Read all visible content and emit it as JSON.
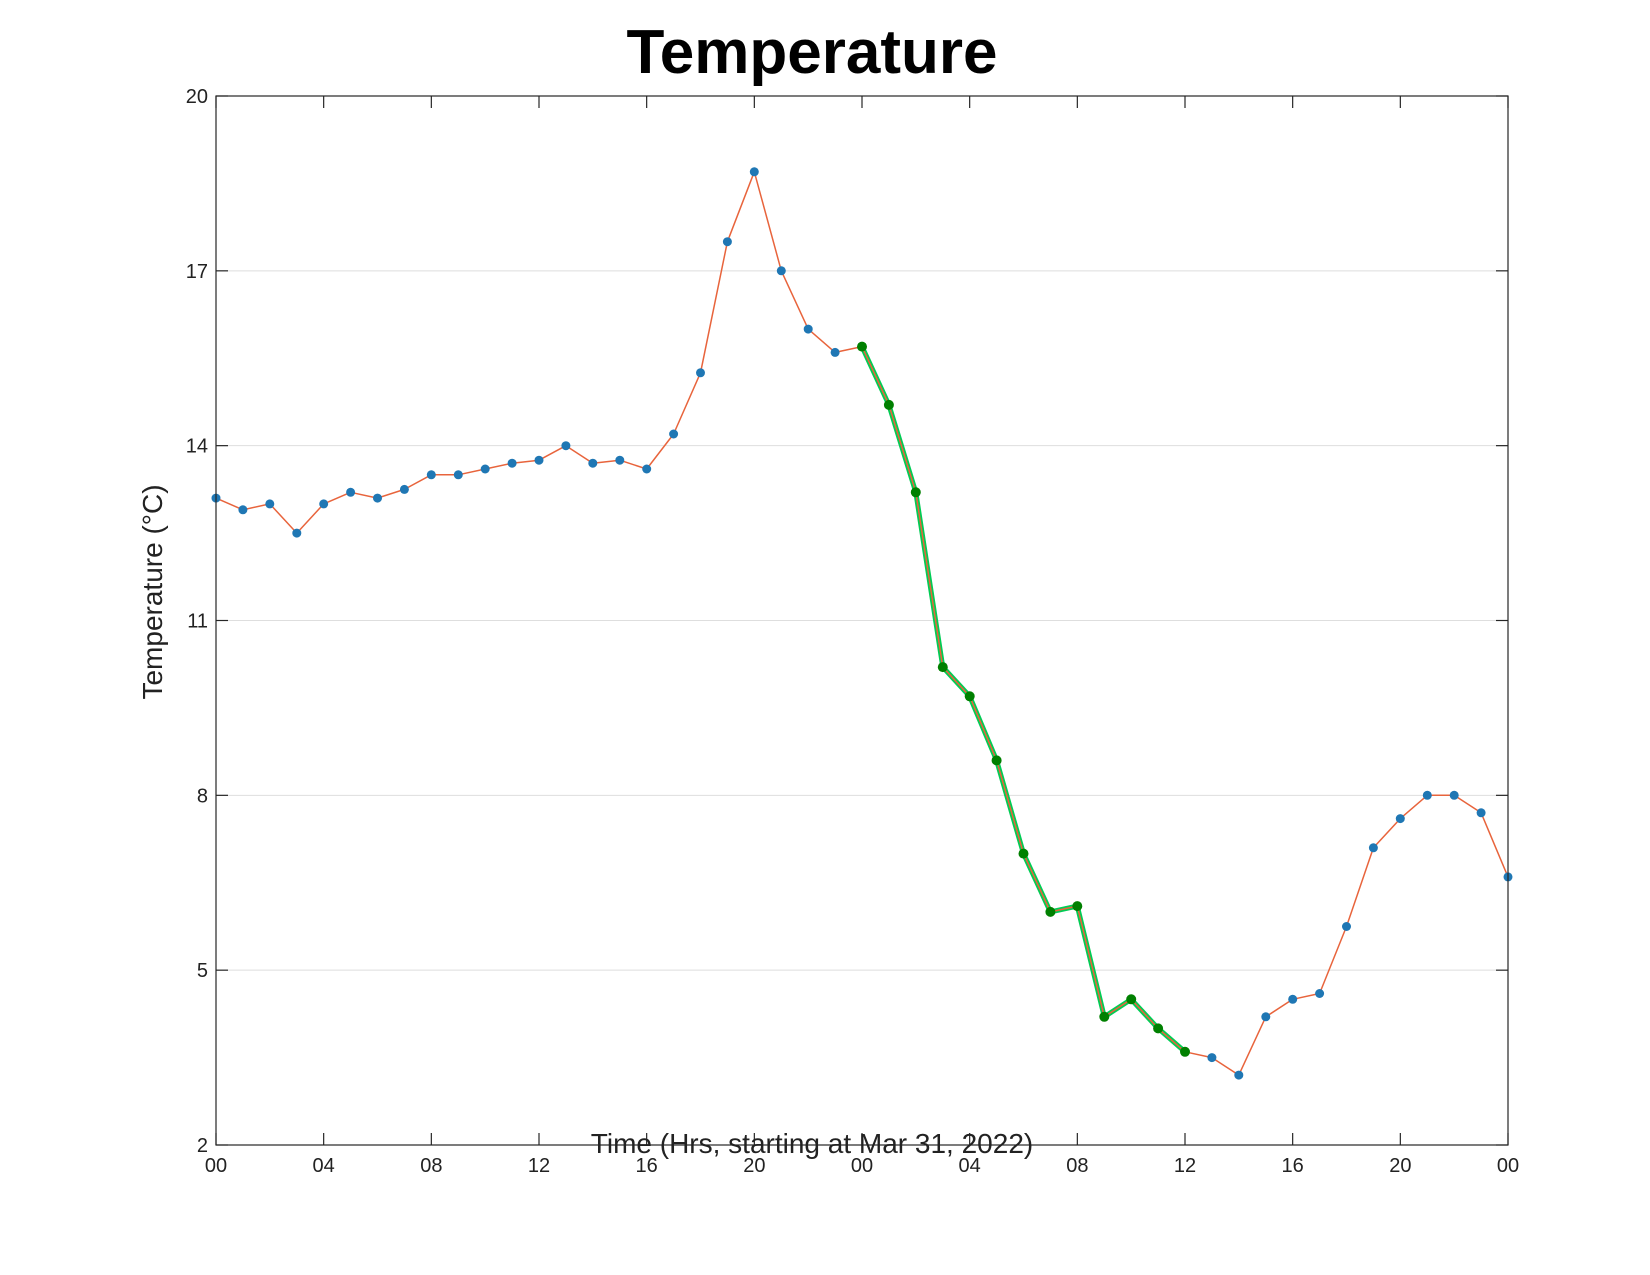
{
  "chart_data": {
    "type": "line",
    "title": "Temperature",
    "xlabel": "Time (Hrs, starting at Mar 31, 2022)",
    "ylabel": "Temperature (°C)",
    "ylim": [
      2,
      20
    ],
    "xlim": [
      "2022-03-31 00:00",
      "2022-04-02 00:00"
    ],
    "yticks": [
      2,
      5,
      8,
      11,
      14,
      17,
      20
    ],
    "xtick_labels": [
      "00",
      "04",
      "08",
      "12",
      "16",
      "20",
      "00",
      "04",
      "08",
      "12",
      "16",
      "20",
      "00"
    ],
    "grid": {
      "horizontal": true,
      "vertical": false
    },
    "colors": {
      "line": "#e8643c",
      "marker": "#1f77b4",
      "highlight_line": "#00cc55",
      "highlight_marker": "#008000"
    },
    "x": [
      "2022-03-31 00:00",
      "2022-03-31 01:00",
      "2022-03-31 02:00",
      "2022-03-31 03:00",
      "2022-03-31 04:00",
      "2022-03-31 05:00",
      "2022-03-31 06:00",
      "2022-03-31 07:00",
      "2022-03-31 08:00",
      "2022-03-31 09:00",
      "2022-03-31 10:00",
      "2022-03-31 11:00",
      "2022-03-31 12:00",
      "2022-03-31 13:00",
      "2022-03-31 14:00",
      "2022-03-31 15:00",
      "2022-03-31 16:00",
      "2022-03-31 17:00",
      "2022-03-31 18:00",
      "2022-03-31 19:00",
      "2022-03-31 20:00",
      "2022-03-31 21:00",
      "2022-03-31 22:00",
      "2022-03-31 23:00",
      "2022-04-01 00:00",
      "2022-04-01 01:00",
      "2022-04-01 02:00",
      "2022-04-01 03:00",
      "2022-04-01 04:00",
      "2022-04-01 05:00",
      "2022-04-01 06:00",
      "2022-04-01 07:00",
      "2022-04-01 08:00",
      "2022-04-01 09:00",
      "2022-04-01 10:00",
      "2022-04-01 11:00",
      "2022-04-01 12:00",
      "2022-04-01 13:00",
      "2022-04-01 14:00",
      "2022-04-01 15:00",
      "2022-04-01 16:00",
      "2022-04-01 17:00",
      "2022-04-01 18:00",
      "2022-04-01 19:00",
      "2022-04-01 20:00",
      "2022-04-01 21:00",
      "2022-04-01 22:00",
      "2022-04-01 23:00",
      "2022-04-02 00:00"
    ],
    "series": [
      {
        "values": [
          13.1,
          12.9,
          13.0,
          12.5,
          13.0,
          13.2,
          13.1,
          13.25,
          13.5,
          13.5,
          13.6,
          13.7,
          13.75,
          14.0,
          13.7,
          13.75,
          13.6,
          14.2,
          15.25,
          17.5,
          18.7,
          17.0,
          16.0,
          15.6,
          15.7,
          14.7,
          13.2,
          10.2,
          9.7,
          8.6,
          7.0,
          6.0,
          6.1,
          4.2,
          4.5,
          4.0,
          3.6,
          3.5,
          3.2,
          4.2,
          4.5,
          4.6,
          5.75,
          7.1,
          7.6,
          8.0,
          8.0,
          7.7,
          6.6
        ]
      }
    ],
    "highlight": {
      "x_from": "2022-04-01 00:00",
      "x_to": "2022-04-01 12:00"
    }
  }
}
